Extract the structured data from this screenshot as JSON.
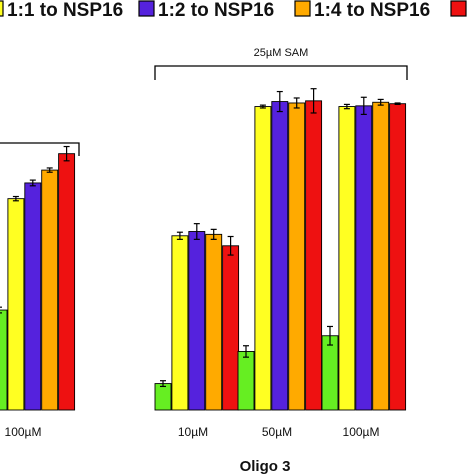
{
  "chart_data": {
    "type": "bar",
    "legend_placement": "top",
    "series": [
      {
        "name": "",
        "color": "#66ee22",
        "values": [
          14,
          3.7,
          8.2,
          10.4
        ]
      },
      {
        "name": "1:1 to NSP16",
        "color": "#ffff22",
        "values": [
          29.6,
          24.4,
          42.5,
          42.5
        ]
      },
      {
        "name": "1:2 to NSP16",
        "color": "#5522dd",
        "values": [
          31.8,
          25.0,
          43.2,
          42.6
        ]
      },
      {
        "name": "1:4 to NSP16",
        "color": "#ffaa00",
        "values": [
          33.6,
          24.6,
          43.0,
          43.1
        ]
      },
      {
        "name": "",
        "color": "#ee1111",
        "values": [
          35.9,
          23.0,
          43.3,
          42.9
        ]
      }
    ],
    "errors": [
      [
        0.4,
        0.4,
        0.8,
        1.3
      ],
      [
        0.3,
        0.5,
        0.2,
        0.3
      ],
      [
        0.4,
        1.1,
        1.4,
        1.2
      ],
      [
        0.3,
        0.7,
        0.7,
        0.4
      ],
      [
        1.0,
        1.3,
        1.7,
        0.1
      ]
    ],
    "categories": [
      "100µM",
      "10µM",
      "50µM",
      "100µM"
    ],
    "group_label": "Oligo 3",
    "bracket_label": "25µM SAM",
    "ylim": [
      0,
      50
    ],
    "grid": false
  }
}
